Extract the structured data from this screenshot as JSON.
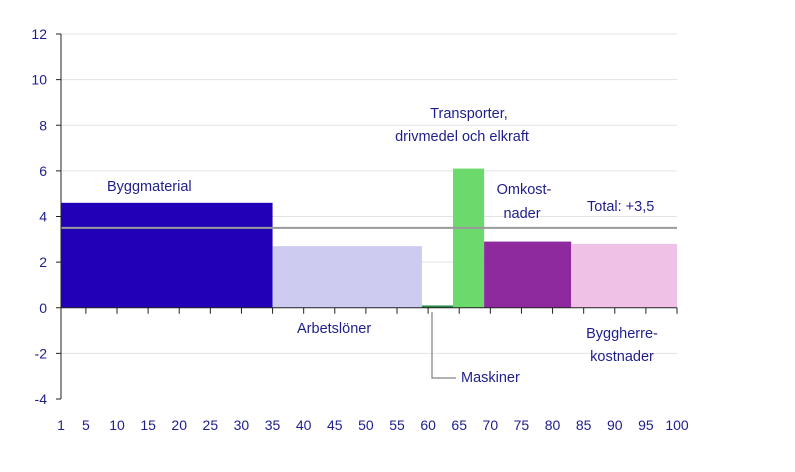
{
  "chart_data": {
    "type": "bar",
    "title": "",
    "xlabel": "",
    "ylabel": "",
    "xlim": [
      1,
      100
    ],
    "ylim": [
      -4,
      12
    ],
    "y_ticks": [
      -4,
      -2,
      0,
      2,
      4,
      6,
      8,
      10,
      12
    ],
    "x_ticks": [
      1,
      5,
      10,
      15,
      20,
      25,
      30,
      35,
      40,
      45,
      50,
      55,
      60,
      65,
      70,
      75,
      80,
      85,
      90,
      95,
      100
    ],
    "grid": true,
    "bars": [
      {
        "label": "Byggmaterial",
        "x_start": 1,
        "x_end": 35,
        "value": 4.6,
        "color": "#2200b8"
      },
      {
        "label": "Arbetslöner",
        "x_start": 35,
        "x_end": 59,
        "value": 2.7,
        "color": "#cdcbf0"
      },
      {
        "label": "Maskiner",
        "x_start": 59,
        "x_end": 64,
        "value": 0.1,
        "color": "#2a8a4a"
      },
      {
        "label": "Transporter, drivmedel och elkraft",
        "x_start": 64,
        "x_end": 69,
        "value": 6.1,
        "color": "#6cd96c"
      },
      {
        "label": "Omkostnader",
        "x_start": 69,
        "x_end": 83,
        "value": 2.9,
        "color": "#8e2a9e"
      },
      {
        "label": "Byggherrekostnader",
        "x_start": 83,
        "x_end": 100,
        "value": 2.8,
        "color": "#efc1e6"
      }
    ],
    "total": {
      "label": "Total: +3,5",
      "value": 3.5,
      "color": "#9a9a9a"
    }
  },
  "annotations": {
    "byggmaterial": "Byggmaterial",
    "arbetsloner": "Arbetslöner",
    "maskiner": "Maskiner",
    "transporter_line1": "Transporter,",
    "transporter_line2": "drivmedel och elkraft",
    "omkost_line1": "Omkost-",
    "omkost_line2": "nader",
    "byggherre_line1": "Byggherre-",
    "byggherre_line2": "kostnader",
    "total": "Total: +3,5"
  }
}
